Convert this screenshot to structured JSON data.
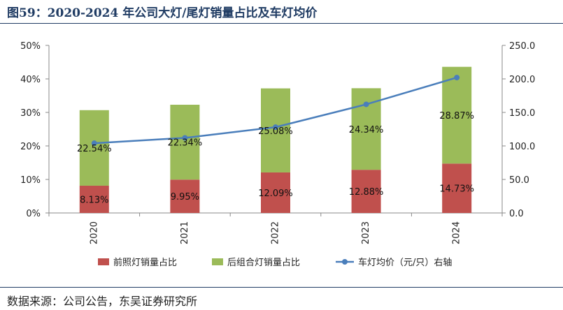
{
  "title": "图59：2020-2024 年公司大灯/尾灯销量占比及车灯均价",
  "source": "数据来源：公司公告，东吴证券研究所",
  "colors": {
    "front": "#c0504d",
    "rear": "#9bbb59",
    "line": "#4a7ebb",
    "title": "#1f3b63"
  },
  "chart_data": {
    "type": "bar",
    "stacked": true,
    "categories": [
      "2020",
      "2021",
      "2022",
      "2023",
      "2024"
    ],
    "series": [
      {
        "name": "前照灯销量占比",
        "type": "bar",
        "axis": "left",
        "values": [
          8.13,
          9.95,
          12.09,
          12.88,
          14.73
        ],
        "labels": [
          "8.13%",
          "9.95%",
          "12.09%",
          "12.88%",
          "14.73%"
        ]
      },
      {
        "name": "后组合灯销量占比",
        "type": "bar",
        "axis": "left",
        "values": [
          22.54,
          22.34,
          25.08,
          24.34,
          28.87
        ],
        "labels": [
          "22.54%",
          "22.34%",
          "25.08%",
          "24.34%",
          "28.87%"
        ]
      },
      {
        "name": "车灯均价（元/只）右轴",
        "type": "line",
        "axis": "right",
        "values": [
          104,
          112,
          128,
          162,
          202
        ]
      }
    ],
    "y_left": {
      "ylim": [
        0,
        50
      ],
      "ticks": [
        "0%",
        "10%",
        "20%",
        "30%",
        "40%",
        "50%"
      ]
    },
    "y_right": {
      "ylim": [
        0,
        250
      ],
      "ticks": [
        "0.0",
        "50.0",
        "100.0",
        "150.0",
        "200.0",
        "250.0"
      ]
    },
    "grid": false,
    "legend": "bottom"
  }
}
